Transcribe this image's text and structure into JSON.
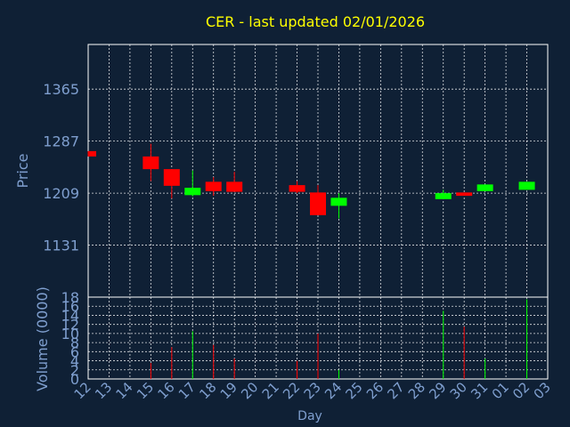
{
  "chart_data": {
    "type": "candlestick",
    "title": "CER - last updated 02/01/2026",
    "price_panel": {
      "ylabel": "Price",
      "y_ticks": [
        1131,
        1209,
        1287,
        1365
      ],
      "ylim": [
        1053,
        1432
      ]
    },
    "volume_panel": {
      "ylabel": "Volume (0000)",
      "y_ticks": [
        0,
        2,
        4,
        6,
        8,
        10,
        12,
        14,
        16,
        18
      ],
      "ylim": [
        0,
        18
      ]
    },
    "xlabel": "Day",
    "x_ticks": [
      "12",
      "13",
      "14",
      "15",
      "16",
      "17",
      "18",
      "19",
      "20",
      "21",
      "22",
      "23",
      "24",
      "25",
      "26",
      "27",
      "28",
      "29",
      "30",
      "31",
      "01",
      "02",
      "03"
    ],
    "candles": [
      {
        "day": "12",
        "open": 1272,
        "close": 1264,
        "high": 1272,
        "low": 1264,
        "volume": 0
      },
      {
        "day": "15",
        "open": 1264,
        "close": 1245,
        "high": 1283,
        "low": 1227,
        "volume": 3.5
      },
      {
        "day": "16",
        "open": 1245,
        "close": 1220,
        "high": 1245,
        "low": 1201,
        "volume": 7
      },
      {
        "day": "17",
        "open": 1206,
        "close": 1217,
        "high": 1243,
        "low": 1204,
        "volume": 10.5
      },
      {
        "day": "18",
        "open": 1226,
        "close": 1212,
        "high": 1233,
        "low": 1205,
        "volume": 7.5
      },
      {
        "day": "19",
        "open": 1226,
        "close": 1211,
        "high": 1241,
        "low": 1211,
        "volume": 4.5
      },
      {
        "day": "22",
        "open": 1221,
        "close": 1211,
        "high": 1227,
        "low": 1209,
        "volume": 4
      },
      {
        "day": "23",
        "open": 1210,
        "close": 1176,
        "high": 1221,
        "low": 1176,
        "volume": 10
      },
      {
        "day": "24",
        "open": 1190,
        "close": 1202,
        "high": 1209,
        "low": 1171,
        "volume": 2
      },
      {
        "day": "29",
        "open": 1200,
        "close": 1209,
        "high": 1214,
        "low": 1200,
        "volume": 15
      },
      {
        "day": "30",
        "open": 1210,
        "close": 1205,
        "high": 1210,
        "low": 1205,
        "volume": 11.5
      },
      {
        "day": "31",
        "open": 1212,
        "close": 1222,
        "high": 1222,
        "low": 1212,
        "volume": 4.5
      },
      {
        "day": "02",
        "open": 1214,
        "close": 1226,
        "high": 1226,
        "low": 1214,
        "volume": 17.5
      }
    ],
    "grid": true
  },
  "colors": {
    "background": "#0f2035",
    "title": "#ffff00",
    "axis_text": "#7f9fcf",
    "up": "#00ff00",
    "down": "#ff0000",
    "frame": "#ffffff",
    "grid": "#ffffff"
  }
}
